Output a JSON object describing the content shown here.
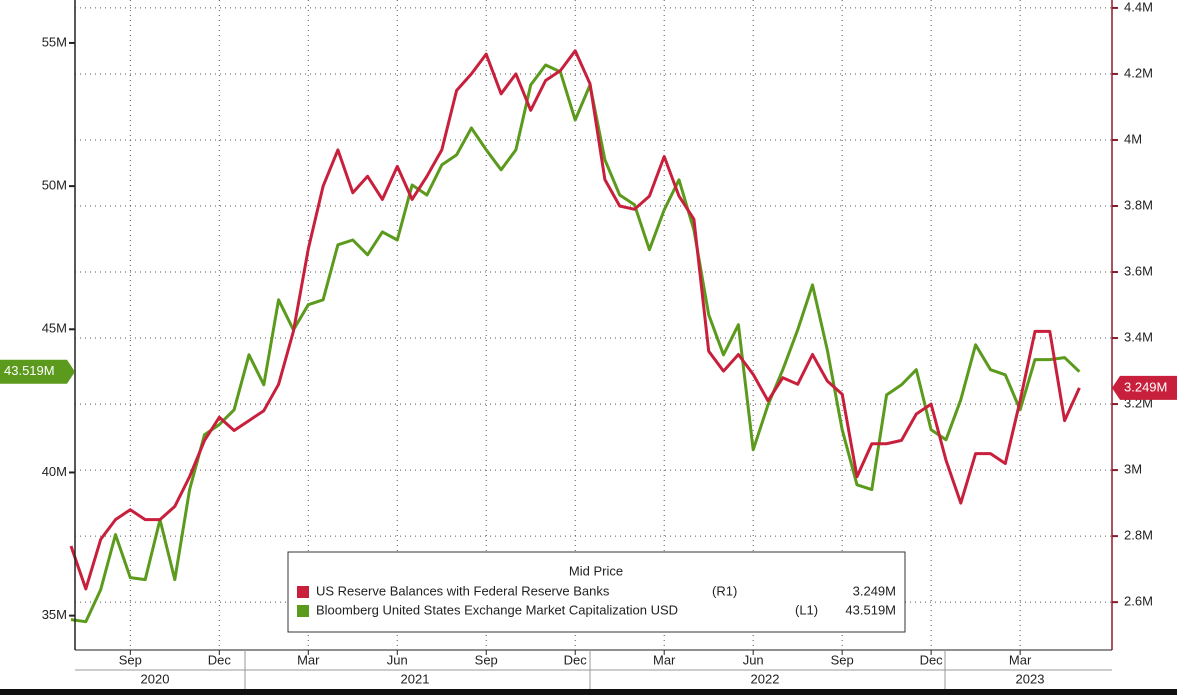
{
  "chart_data": {
    "type": "line",
    "categories": [
      null,
      null,
      null,
      null,
      "Sep",
      null,
      null,
      null,
      null,
      null,
      "Dec",
      null,
      null,
      null,
      null,
      null,
      "Mar",
      null,
      null,
      null,
      null,
      null,
      "Jun",
      null,
      null,
      null,
      null,
      null,
      "Sep",
      null,
      null,
      null,
      null,
      null,
      "Dec",
      null,
      null,
      null,
      null,
      null,
      "Mar",
      null,
      null,
      null,
      null,
      null,
      "Jun",
      null,
      null,
      null,
      null,
      null,
      "Sep",
      null,
      null,
      null,
      null,
      null,
      "Dec",
      null,
      null,
      null,
      null,
      null,
      "Mar",
      null,
      null,
      null,
      null
    ],
    "years": [
      "2020",
      "2021",
      "2022",
      "2023"
    ],
    "ylim": [
      33.8,
      56.5
    ],
    "yticks": [
      {
        "value": 35,
        "label": "35M"
      },
      {
        "value": 40,
        "label": "40M"
      },
      {
        "value": 45,
        "label": "45M"
      },
      {
        "value": 50,
        "label": "50M"
      },
      {
        "value": 55,
        "label": "55M"
      }
    ],
    "y2lim": [
      2.455,
      4.424
    ],
    "y2ticks": [
      {
        "value": 2.6,
        "label": "2.6M"
      },
      {
        "value": 2.8,
        "label": "2.8M"
      },
      {
        "value": 3,
        "label": "3M"
      },
      {
        "value": 3.2,
        "label": "3.2M"
      },
      {
        "value": 3.4,
        "label": "3.4M"
      },
      {
        "value": 3.6,
        "label": "3.6M"
      },
      {
        "value": 3.8,
        "label": "3.8M"
      },
      {
        "value": 4,
        "label": "4M"
      },
      {
        "value": 4.2,
        "label": "4.2M"
      },
      {
        "value": 4.4,
        "label": "4.4M"
      }
    ],
    "grid": true,
    "legend": {
      "title": "Mid Price"
    },
    "series": [
      {
        "name": "US Reserve Balances with Federal Reserve Banks",
        "axis_tag": "(R1)",
        "last_label": "3.249M",
        "color": "#c8203c",
        "axis": "y2",
        "values": [
          2.77,
          2.64,
          2.79,
          2.85,
          2.88,
          2.85,
          2.85,
          2.89,
          2.98,
          3.09,
          3.16,
          3.12,
          3.15,
          3.18,
          3.26,
          3.42,
          3.67,
          3.86,
          3.97,
          3.84,
          3.89,
          3.82,
          3.92,
          3.82,
          3.89,
          3.97,
          4.15,
          4.2,
          4.26,
          4.14,
          4.2,
          4.09,
          4.18,
          4.21,
          4.27,
          4.17,
          3.88,
          3.8,
          3.79,
          3.83,
          3.95,
          3.83,
          3.76,
          3.36,
          3.3,
          3.35,
          3.29,
          3.21,
          3.28,
          3.26,
          3.35,
          3.27,
          3.23,
          2.98,
          3.08,
          3.08,
          3.09,
          3.17,
          3.2,
          3.03,
          2.9,
          3.05,
          3.05,
          3.02,
          3.21,
          3.42,
          3.42,
          3.15,
          3.249
        ]
      },
      {
        "name": "Bloomberg United States Exchange Market Capitalization USD",
        "axis_tag": "(L1)",
        "last_label": "43.519M",
        "color": "#5b9a1c",
        "axis": "y",
        "values": [
          34.86,
          34.79,
          35.91,
          37.83,
          36.33,
          36.26,
          38.35,
          36.26,
          39.4,
          41.32,
          41.67,
          42.19,
          44.11,
          43.06,
          46.03,
          44.98,
          45.86,
          46.03,
          47.95,
          48.12,
          47.6,
          48.4,
          48.12,
          50.04,
          49.69,
          50.74,
          51.09,
          52.03,
          51.27,
          50.57,
          51.27,
          53.53,
          54.23,
          53.99,
          52.31,
          53.53,
          50.92,
          49.69,
          49.35,
          47.78,
          49.17,
          50.22,
          48.47,
          45.51,
          44.11,
          45.16,
          40.79,
          42.36,
          43.59,
          44.98,
          46.55,
          44.28,
          41.49,
          39.57,
          39.4,
          42.71,
          43.06,
          43.59,
          41.49,
          41.14,
          42.54,
          44.46,
          43.59,
          43.41,
          42.19,
          43.94,
          43.94,
          44.01,
          43.519
        ]
      }
    ]
  }
}
